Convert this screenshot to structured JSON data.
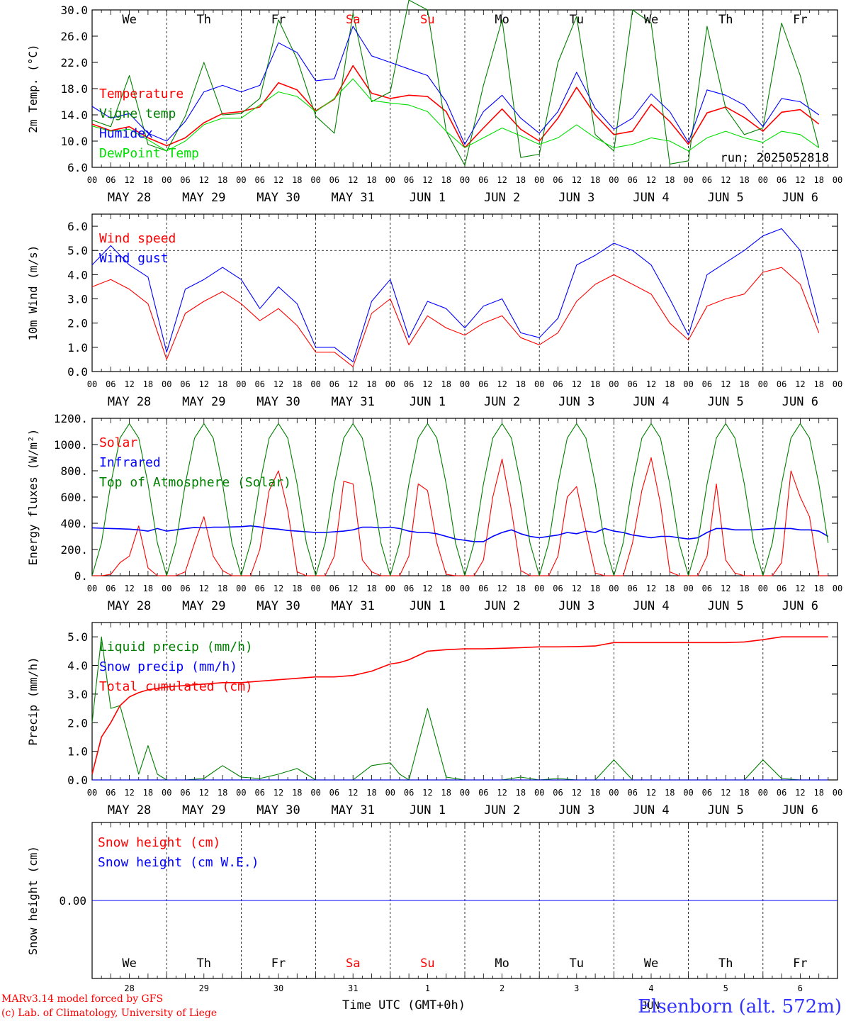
{
  "meta": {
    "run_label": "run: 2025052818",
    "footer_left": [
      "MARv3.14 model forced by GFS",
      "(c) Lab. of Climatology, University of Liege"
    ],
    "x_title": "Time UTC (GMT+0h)",
    "month_label": "JUN",
    "station": "Elsenborn (alt. 572m)",
    "hour_ticks": [
      "00",
      "06",
      "12",
      "18"
    ],
    "days": [
      {
        "abbr": "We",
        "date": "MAY 28",
        "num": "28",
        "weekend": false
      },
      {
        "abbr": "Th",
        "date": "MAY 29",
        "num": "29",
        "weekend": false
      },
      {
        "abbr": "Fr",
        "date": "MAY 30",
        "num": "30",
        "weekend": false
      },
      {
        "abbr": "Sa",
        "date": "MAY 31",
        "num": "31",
        "weekend": true
      },
      {
        "abbr": "Su",
        "date": "JUN  1",
        "num": "1",
        "weekend": true
      },
      {
        "abbr": "Mo",
        "date": "JUN  2",
        "num": "2",
        "weekend": false
      },
      {
        "abbr": "Tu",
        "date": "JUN  3",
        "num": "3",
        "weekend": false
      },
      {
        "abbr": "We",
        "date": "JUN  4",
        "num": "4",
        "weekend": false
      },
      {
        "abbr": "Th",
        "date": "JUN  5",
        "num": "5",
        "weekend": false
      },
      {
        "abbr": "Fr",
        "date": "JUN  6",
        "num": "6",
        "weekend": false
      }
    ],
    "colors": {
      "red": "#ff0000",
      "green": "#008000",
      "blue": "#0000ff",
      "lightgreen": "#00e000",
      "grid": "#000000",
      "weekend": "#ff0000"
    }
  },
  "chart_data": [
    {
      "type": "line",
      "id": "temp",
      "ylabel": "2m Temp. (°C)",
      "ylim": [
        6,
        30
      ],
      "yticks": [
        "6.0",
        "10.0",
        "14.0",
        "18.0",
        "22.0",
        "26.0",
        "30.0"
      ],
      "x_unit": "hours since 2025-05-28 00 UTC",
      "x": [
        0,
        6,
        12,
        18,
        24,
        30,
        36,
        42,
        48,
        54,
        60,
        66,
        72,
        78,
        84,
        90,
        96,
        102,
        108,
        114,
        120,
        126,
        132,
        138,
        144,
        150,
        156,
        162,
        168,
        174,
        180,
        186,
        192,
        198,
        204,
        210,
        216,
        222,
        228,
        234
      ],
      "series": [
        {
          "name": "Temperature",
          "color": "#ff0000",
          "values": [
            12.6,
            11.6,
            12.2,
            10.5,
            9.3,
            10.5,
            12.8,
            14.2,
            14.5,
            15.2,
            18.9,
            17.8,
            14.6,
            16.4,
            21.5,
            17.3,
            16.5,
            17.0,
            16.8,
            14.5,
            9.0,
            12.0,
            14.9,
            11.8,
            10.0,
            13.5,
            18.2,
            14.0,
            11.0,
            11.5,
            15.6,
            13.0,
            9.5,
            14.3,
            15.2,
            13.6,
            11.5,
            14.4,
            14.8,
            12.6
          ]
        },
        {
          "name": "Vigne temp",
          "color": "#008000",
          "values": [
            13.2,
            12.2,
            20.0,
            9.5,
            8.5,
            13.8,
            22.0,
            14.0,
            14.2,
            16.5,
            28.5,
            22.5,
            13.8,
            11.2,
            29.5,
            16.0,
            17.5,
            31.5,
            30.0,
            11.5,
            6.3,
            18.5,
            28.5,
            7.5,
            8.0,
            22.0,
            29.0,
            11.0,
            8.5,
            30.0,
            28.0,
            6.5,
            7.0,
            27.5,
            15.0,
            11.0,
            12.0,
            28.0,
            20.0,
            9.0
          ]
        },
        {
          "name": "Humidex",
          "color": "#0000ff",
          "values": [
            15.3,
            13.5,
            14.2,
            11.2,
            10.0,
            13.0,
            17.5,
            18.5,
            17.5,
            18.5,
            25.0,
            23.5,
            19.2,
            19.5,
            27.5,
            23.0,
            22.0,
            21.0,
            20.0,
            16.0,
            9.5,
            14.5,
            17.0,
            13.5,
            11.2,
            14.5,
            20.5,
            15.0,
            11.8,
            13.5,
            17.2,
            14.5,
            9.8,
            17.8,
            17.0,
            15.5,
            12.2,
            16.5,
            16.0,
            14.0
          ]
        },
        {
          "name": "DewPoint Temp",
          "color": "#00e000",
          "values": [
            12.3,
            11.5,
            11.8,
            10.2,
            8.5,
            10.0,
            12.5,
            13.5,
            13.5,
            15.5,
            17.5,
            16.8,
            14.5,
            16.5,
            19.5,
            16.2,
            15.8,
            15.5,
            14.5,
            11.5,
            9.0,
            10.5,
            12.0,
            10.8,
            9.5,
            10.5,
            12.5,
            10.5,
            9.0,
            9.5,
            10.5,
            10.0,
            8.5,
            10.5,
            11.5,
            10.5,
            9.8,
            11.5,
            11.0,
            9.0
          ]
        }
      ]
    },
    {
      "type": "line",
      "id": "wind",
      "ylabel": "10m Wind (m/s)",
      "ylim": [
        0,
        6.5
      ],
      "yticks": [
        "0.0",
        "1.0",
        "2.0",
        "3.0",
        "4.0",
        "5.0",
        "6.0"
      ],
      "x": [
        0,
        6,
        12,
        18,
        24,
        30,
        36,
        42,
        48,
        54,
        60,
        66,
        72,
        78,
        84,
        90,
        96,
        102,
        108,
        114,
        120,
        126,
        132,
        138,
        144,
        150,
        156,
        162,
        168,
        174,
        180,
        186,
        192,
        198,
        204,
        210,
        216,
        222,
        228,
        234
      ],
      "series": [
        {
          "name": "Wind speed",
          "color": "#ff0000",
          "values": [
            3.5,
            3.8,
            3.4,
            2.8,
            0.5,
            2.4,
            2.9,
            3.3,
            2.8,
            2.1,
            2.6,
            1.9,
            0.8,
            0.8,
            0.2,
            2.4,
            3.0,
            1.1,
            2.3,
            1.8,
            1.5,
            2.0,
            2.3,
            1.4,
            1.1,
            1.6,
            2.9,
            3.6,
            4.0,
            3.6,
            3.2,
            2.0,
            1.3,
            2.7,
            3.0,
            3.2,
            4.1,
            4.3,
            3.6,
            1.6
          ]
        },
        {
          "name": "Wind gust",
          "color": "#0000ff",
          "values": [
            4.4,
            5.2,
            4.4,
            3.9,
            0.8,
            3.4,
            3.8,
            4.3,
            3.8,
            2.6,
            3.5,
            2.8,
            1.0,
            1.0,
            0.4,
            2.9,
            3.8,
            1.4,
            2.9,
            2.6,
            1.8,
            2.7,
            3.0,
            1.6,
            1.4,
            2.2,
            4.4,
            4.8,
            5.3,
            5.0,
            4.4,
            3.0,
            1.5,
            4.0,
            4.5,
            5.0,
            5.6,
            5.9,
            5.0,
            2.0
          ]
        }
      ],
      "reference_line": 5.0
    },
    {
      "type": "line",
      "id": "energy",
      "ylabel": "Energy fluxes (W/m²)",
      "ylim": [
        0,
        1200
      ],
      "yticks": [
        "0.",
        "200.",
        "400.",
        "600.",
        "800.",
        "1000.",
        "1200."
      ],
      "x": [
        0,
        3,
        6,
        9,
        12,
        15,
        18,
        21,
        24,
        27,
        30,
        33,
        36,
        39,
        42,
        45,
        48,
        51,
        54,
        57,
        60,
        63,
        66,
        69,
        72,
        75,
        78,
        81,
        84,
        87,
        90,
        93,
        96,
        99,
        102,
        105,
        108,
        111,
        114,
        117,
        120,
        123,
        126,
        129,
        132,
        135,
        138,
        141,
        144,
        147,
        150,
        153,
        156,
        159,
        162,
        165,
        168,
        171,
        174,
        177,
        180,
        183,
        186,
        189,
        192,
        195,
        198,
        201,
        204,
        207,
        210,
        213,
        216,
        219,
        222,
        225,
        228,
        231,
        234,
        237
      ],
      "series": [
        {
          "name": "Solar",
          "color": "#ff0000",
          "values": [
            0,
            0,
            10,
            100,
            150,
            380,
            60,
            0,
            0,
            0,
            30,
            250,
            450,
            150,
            40,
            0,
            0,
            0,
            200,
            650,
            800,
            500,
            30,
            0,
            0,
            0,
            150,
            720,
            700,
            120,
            30,
            0,
            0,
            0,
            150,
            700,
            650,
            250,
            10,
            0,
            0,
            0,
            120,
            600,
            890,
            500,
            40,
            0,
            0,
            0,
            150,
            600,
            680,
            340,
            20,
            0,
            0,
            0,
            250,
            650,
            900,
            550,
            30,
            0,
            0,
            0,
            150,
            700,
            120,
            20,
            0,
            0,
            0,
            0,
            100,
            800,
            600,
            450,
            0,
            0
          ]
        },
        {
          "name": "Infrared",
          "color": "#0000ff",
          "values": [
            365,
            362,
            360,
            358,
            355,
            350,
            340,
            360,
            340,
            350,
            360,
            368,
            365,
            370,
            370,
            372,
            374,
            380,
            372,
            360,
            355,
            345,
            340,
            335,
            330,
            330,
            335,
            340,
            350,
            370,
            370,
            365,
            370,
            360,
            340,
            330,
            330,
            320,
            300,
            280,
            270,
            260,
            260,
            300,
            330,
            350,
            320,
            300,
            290,
            300,
            310,
            330,
            320,
            340,
            330,
            360,
            340,
            330,
            310,
            300,
            290,
            300,
            300,
            290,
            280,
            290,
            330,
            360,
            360,
            350,
            350,
            350,
            355,
            360,
            360,
            360,
            350,
            350,
            340,
            300
          ]
        },
        {
          "name": "Top of Atmosphere (Solar)",
          "color": "#008000",
          "values": [
            0,
            250,
            700,
            1050,
            1160,
            1050,
            700,
            250,
            0,
            250,
            700,
            1050,
            1160,
            1050,
            700,
            250,
            0,
            250,
            700,
            1050,
            1160,
            1050,
            700,
            250,
            0,
            250,
            700,
            1050,
            1160,
            1050,
            700,
            250,
            0,
            250,
            700,
            1050,
            1160,
            1050,
            700,
            250,
            0,
            250,
            700,
            1050,
            1160,
            1050,
            700,
            250,
            0,
            250,
            700,
            1050,
            1160,
            1050,
            700,
            250,
            0,
            250,
            700,
            1050,
            1160,
            1050,
            700,
            250,
            0,
            250,
            700,
            1050,
            1160,
            1050,
            700,
            250,
            0,
            250,
            700,
            1050,
            1160,
            1050,
            700,
            250
          ]
        }
      ]
    },
    {
      "type": "line",
      "id": "precip",
      "ylabel": "Precip (mm/h)",
      "ylim": [
        0,
        5.5
      ],
      "yticks": [
        "0.0",
        "1.0",
        "2.0",
        "3.0",
        "4.0",
        "5.0"
      ],
      "x": [
        0,
        3,
        6,
        9,
        12,
        15,
        18,
        21,
        24,
        30,
        36,
        42,
        48,
        54,
        60,
        66,
        72,
        78,
        84,
        90,
        96,
        99,
        102,
        108,
        114,
        120,
        126,
        132,
        138,
        144,
        150,
        156,
        162,
        168,
        174,
        180,
        186,
        192,
        198,
        201,
        204,
        210,
        216,
        222,
        228,
        234,
        237
      ],
      "series": [
        {
          "name": "Liquid precip (mm/h)",
          "color": "#008000",
          "values": [
            2.0,
            5.0,
            2.5,
            2.6,
            1.4,
            0.2,
            1.2,
            0.2,
            0.0,
            0.0,
            0.05,
            0.5,
            0.1,
            0.05,
            0.2,
            0.4,
            0.0,
            0.0,
            0.0,
            0.5,
            0.6,
            0.2,
            0.0,
            2.5,
            0.1,
            0.0,
            0.0,
            0.0,
            0.1,
            0.0,
            0.05,
            0.0,
            0.0,
            0.7,
            0.0,
            0.0,
            0.0,
            0.0,
            0.0,
            0.0,
            0.0,
            0.0,
            0.7,
            0.05,
            0.0,
            0.0,
            0.0
          ]
        },
        {
          "name": "Snow precip (mm/h)",
          "color": "#0000ff",
          "values": [
            0,
            0,
            0,
            0,
            0,
            0,
            0,
            0,
            0,
            0,
            0,
            0,
            0,
            0,
            0,
            0,
            0,
            0,
            0,
            0,
            0,
            0,
            0,
            0,
            0,
            0,
            0,
            0,
            0,
            0,
            0,
            0,
            0,
            0,
            0,
            0,
            0,
            0,
            0,
            0,
            0,
            0,
            0,
            0,
            0,
            0,
            0
          ]
        },
        {
          "name": "Total cumulated (cm)",
          "color": "#ff0000",
          "values": [
            0.2,
            1.5,
            2.0,
            2.6,
            2.9,
            3.05,
            3.15,
            3.2,
            3.25,
            3.3,
            3.35,
            3.4,
            3.4,
            3.45,
            3.5,
            3.55,
            3.6,
            3.6,
            3.65,
            3.8,
            4.05,
            4.1,
            4.2,
            4.5,
            4.55,
            4.58,
            4.58,
            4.6,
            4.62,
            4.65,
            4.65,
            4.66,
            4.68,
            4.8,
            4.8,
            4.8,
            4.8,
            4.8,
            4.8,
            4.8,
            4.8,
            4.82,
            4.9,
            5.0,
            5.0,
            5.0,
            5.0
          ]
        }
      ]
    },
    {
      "type": "line",
      "id": "snow",
      "ylabel": "Snow height (cm)",
      "ylim": [
        -1,
        1
      ],
      "yticks": [
        "0.00"
      ],
      "x": [
        0,
        240
      ],
      "series": [
        {
          "name": "Snow height (cm)",
          "color": "#ff0000",
          "values": [
            0,
            0
          ]
        },
        {
          "name": "Snow height (cm W.E.)",
          "color": "#0000ff",
          "values": [
            0,
            0
          ]
        }
      ]
    }
  ]
}
